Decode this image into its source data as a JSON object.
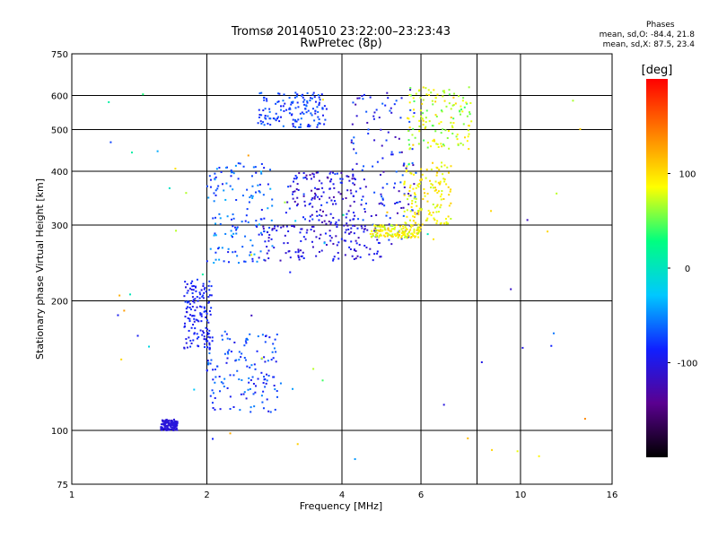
{
  "header": {
    "title": "Tromsø 20140510 23:22:00–23:23:43",
    "subtitle": "RwPretec (8p)"
  },
  "phases": {
    "heading": "Phases",
    "line_o": "mean, sd,O: -84.4, 21.8",
    "line_x": "mean, sd,X:  87.5, 23.4"
  },
  "colorbar": {
    "label": "[deg]",
    "ticks": [
      {
        "value": 100,
        "label": "100"
      },
      {
        "value": 0,
        "label": "0"
      },
      {
        "value": -100,
        "label": "-100"
      }
    ],
    "range": [
      -200,
      200
    ],
    "colors": [
      "#000000",
      "#5a0090",
      "#1020ff",
      "#00c8ff",
      "#00ff80",
      "#ffff00",
      "#ff8000",
      "#ff0000"
    ]
  },
  "chart_data": {
    "type": "scatter",
    "title": "Tromsø 20140510 23:22:00–23:23:43",
    "subtitle": "RwPretec (8p)",
    "xlabel": "Frequency [MHz]",
    "ylabel": "Stationary phase Virtual Height [km]",
    "x_scale": "log",
    "y_scale": "log",
    "xlim": [
      1,
      16
    ],
    "ylim": [
      75,
      750
    ],
    "x_ticks": [
      1,
      2,
      4,
      6,
      10,
      16
    ],
    "x_grid": [
      2,
      4,
      6,
      8,
      10
    ],
    "y_ticks": [
      75,
      100,
      200,
      300,
      400,
      500,
      600,
      750
    ],
    "y_grid": [
      100,
      200,
      300,
      400,
      500,
      600
    ],
    "grid": true,
    "color_scale": "phase [deg]",
    "clusters": [
      {
        "name": "",
        "x": [
          1.58,
          1.72
        ],
        "y": [
          100,
          106
        ],
        "phase": [
          -110,
          -100
        ]
      },
      {
        "name": "",
        "x": [
          1.78,
          2.05
        ],
        "y": [
          155,
          225
        ],
        "phase": [
          -105,
          -75
        ]
      },
      {
        "name": "",
        "x": [
          2.0,
          2.9
        ],
        "y": [
          110,
          170
        ],
        "phase": [
          -100,
          -50
        ]
      },
      {
        "name": "",
        "x": [
          2.0,
          2.8
        ],
        "y": [
          245,
          420
        ],
        "phase": [
          -95,
          -35
        ]
      },
      {
        "name": "",
        "x": [
          2.6,
          3.7
        ],
        "y": [
          505,
          610
        ],
        "phase": [
          -95,
          -55
        ]
      },
      {
        "name": "",
        "x": [
          2.6,
          4.9
        ],
        "y": [
          248,
          300
        ],
        "phase": [
          -125,
          -85
        ]
      },
      {
        "name": "",
        "x": [
          3.0,
          4.3
        ],
        "y": [
          300,
          400
        ],
        "phase": [
          -135,
          -70
        ]
      },
      {
        "name": "",
        "x": [
          4.2,
          5.9
        ],
        "y": [
          270,
          620
        ],
        "phase": [
          -130,
          -60
        ]
      },
      {
        "name": "",
        "x": [
          4.6,
          6.0
        ],
        "y": [
          280,
          300
        ],
        "phase": [
          65,
          110
        ]
      },
      {
        "name": "",
        "x": [
          5.5,
          7.0
        ],
        "y": [
          300,
          420
        ],
        "phase": [
          70,
          110
        ]
      },
      {
        "name": "",
        "x": [
          5.6,
          7.8
        ],
        "y": [
          450,
          630
        ],
        "phase": [
          40,
          110
        ]
      },
      {
        "name": "",
        "x": [
          1.2,
          14
        ],
        "y": [
          80,
          640
        ],
        "phase": [
          -120,
          140
        ]
      }
    ]
  }
}
